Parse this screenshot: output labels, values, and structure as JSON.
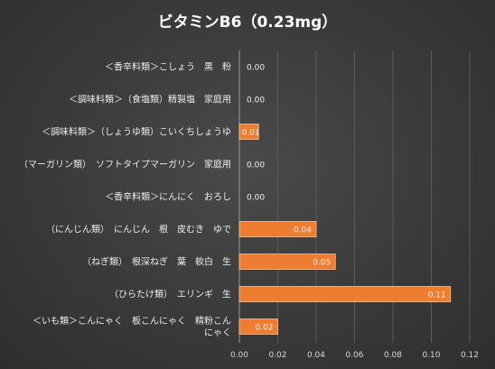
{
  "chart_data": {
    "type": "bar",
    "orientation": "horizontal",
    "title": "ビタミンB6（0.23mg）",
    "categories": [
      [
        "＜香辛料類＞こしょう　黒　粉"
      ],
      [
        "＜調味料類＞（食塩類）精製塩　家庭用"
      ],
      [
        "＜調味料類＞（しょうゆ類）こいくちしょうゆ"
      ],
      [
        "（マーガリン類）　ソフトタイプマーガリン　家庭用"
      ],
      [
        "＜香辛料類＞にんにく　おろし"
      ],
      [
        "（にんじん類）　にんじん　根　皮むき　ゆで"
      ],
      [
        "（ねぎ類）　根深ねぎ　葉　軟白　生"
      ],
      [
        "（ひらたけ類）　エリンギ　生"
      ],
      [
        "＜いも類＞こんにゃく　板こんにゃく　精粉こん",
        "にゃく"
      ]
    ],
    "values": [
      0.0,
      0.0,
      0.01,
      0.0,
      0.0,
      0.04,
      0.05,
      0.11,
      0.02
    ],
    "data_labels": [
      "0.00",
      "0.00",
      "0.01",
      "0.00",
      "0.00",
      "0.04",
      "0.05",
      "0.11",
      "0.02"
    ],
    "xlim": [
      0,
      0.12
    ],
    "xticks": [
      "0.00",
      "0.02",
      "0.04",
      "0.06",
      "0.08",
      "0.10",
      "0.12"
    ],
    "grid": true,
    "legend": "none",
    "colors": {
      "bar": "#ed7d31",
      "background": "#3a3a3a"
    }
  }
}
